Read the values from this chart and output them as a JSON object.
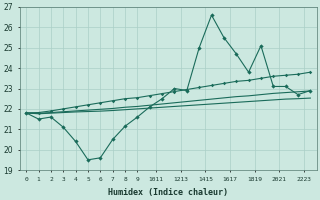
{
  "xlabel": "Humidex (Indice chaleur)",
  "bg_color": "#cce8e0",
  "grid_color": "#aacfc7",
  "line_color": "#1a6b5a",
  "x_values": [
    0,
    1,
    2,
    3,
    4,
    5,
    6,
    7,
    8,
    9,
    10,
    11,
    12,
    13,
    14,
    15,
    16,
    17,
    18,
    19,
    20,
    21,
    22,
    23
  ],
  "line1": [
    21.8,
    21.5,
    21.6,
    21.1,
    20.4,
    19.5,
    19.6,
    20.5,
    21.15,
    21.6,
    22.1,
    22.5,
    23.0,
    22.9,
    25.0,
    26.6,
    25.5,
    24.7,
    23.8,
    25.1,
    23.1,
    23.1,
    22.7,
    22.9
  ],
  "line2": [
    21.8,
    21.82,
    21.9,
    22.0,
    22.1,
    22.2,
    22.3,
    22.4,
    22.5,
    22.55,
    22.65,
    22.75,
    22.85,
    22.95,
    23.05,
    23.15,
    23.25,
    23.35,
    23.4,
    23.5,
    23.6,
    23.65,
    23.7,
    23.8
  ],
  "line3": [
    21.8,
    21.78,
    21.82,
    21.86,
    21.9,
    21.94,
    21.98,
    22.02,
    22.08,
    22.12,
    22.18,
    22.24,
    22.3,
    22.36,
    22.42,
    22.48,
    22.54,
    22.6,
    22.64,
    22.7,
    22.76,
    22.8,
    22.84,
    22.88
  ],
  "line4": [
    21.8,
    21.76,
    21.79,
    21.82,
    21.85,
    21.87,
    21.89,
    21.92,
    21.96,
    22.0,
    22.04,
    22.08,
    22.12,
    22.16,
    22.2,
    22.24,
    22.28,
    22.32,
    22.36,
    22.4,
    22.44,
    22.48,
    22.5,
    22.53
  ],
  "ylim": [
    19,
    27
  ],
  "xlim_min": -0.5,
  "xlim_max": 23.5,
  "xtick_labels": [
    "0",
    "1",
    "2",
    "3",
    "4",
    "5",
    "6",
    "7",
    "8",
    "9",
    "1011",
    "1213",
    "1415",
    "1617",
    "1819",
    "2021",
    "2223"
  ],
  "xtick_positions": [
    0,
    1,
    2,
    3,
    4,
    5,
    6,
    7,
    8,
    9,
    10.5,
    12.5,
    14.5,
    16.5,
    18.5,
    20.5,
    22.5
  ],
  "ytick_labels": [
    "19",
    "20",
    "21",
    "22",
    "23",
    "24",
    "25",
    "26",
    "27"
  ],
  "ytick_positions": [
    19,
    20,
    21,
    22,
    23,
    24,
    25,
    26,
    27
  ]
}
